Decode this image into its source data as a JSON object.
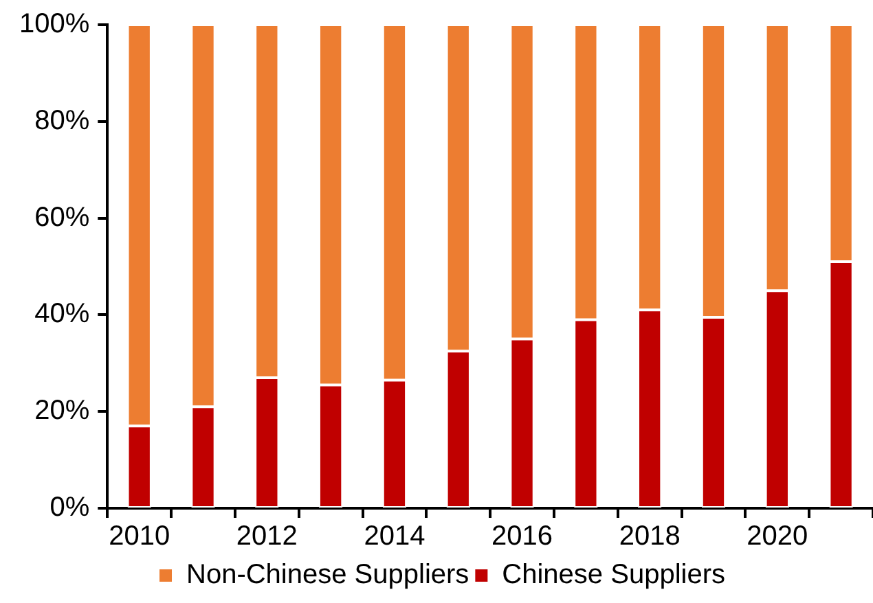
{
  "chart_data": {
    "type": "bar",
    "stacked": true,
    "categories": [
      "2010",
      null,
      "2012",
      null,
      "2014",
      null,
      "2016",
      null,
      "2018",
      null,
      "2020",
      null
    ],
    "series": [
      {
        "name": "Chinese Suppliers",
        "color": "#c00000",
        "values": [
          17,
          21,
          27,
          25.5,
          26.5,
          32.5,
          35,
          39,
          41,
          39.5,
          45,
          51
        ]
      },
      {
        "name": "Non-Chinese Suppliers",
        "color": "#ed7d31",
        "values": [
          83,
          79,
          73,
          74.5,
          73.5,
          67.5,
          65,
          61,
          59,
          60.5,
          55,
          49
        ]
      }
    ],
    "ylim": [
      0,
      100
    ],
    "yticks": [
      {
        "value": 0,
        "label": "0%"
      },
      {
        "value": 20,
        "label": "20%"
      },
      {
        "value": 40,
        "label": "40%"
      },
      {
        "value": 60,
        "label": "60%"
      },
      {
        "value": 80,
        "label": "80%"
      },
      {
        "value": 100,
        "label": "100%"
      }
    ],
    "legend": "bottom"
  }
}
